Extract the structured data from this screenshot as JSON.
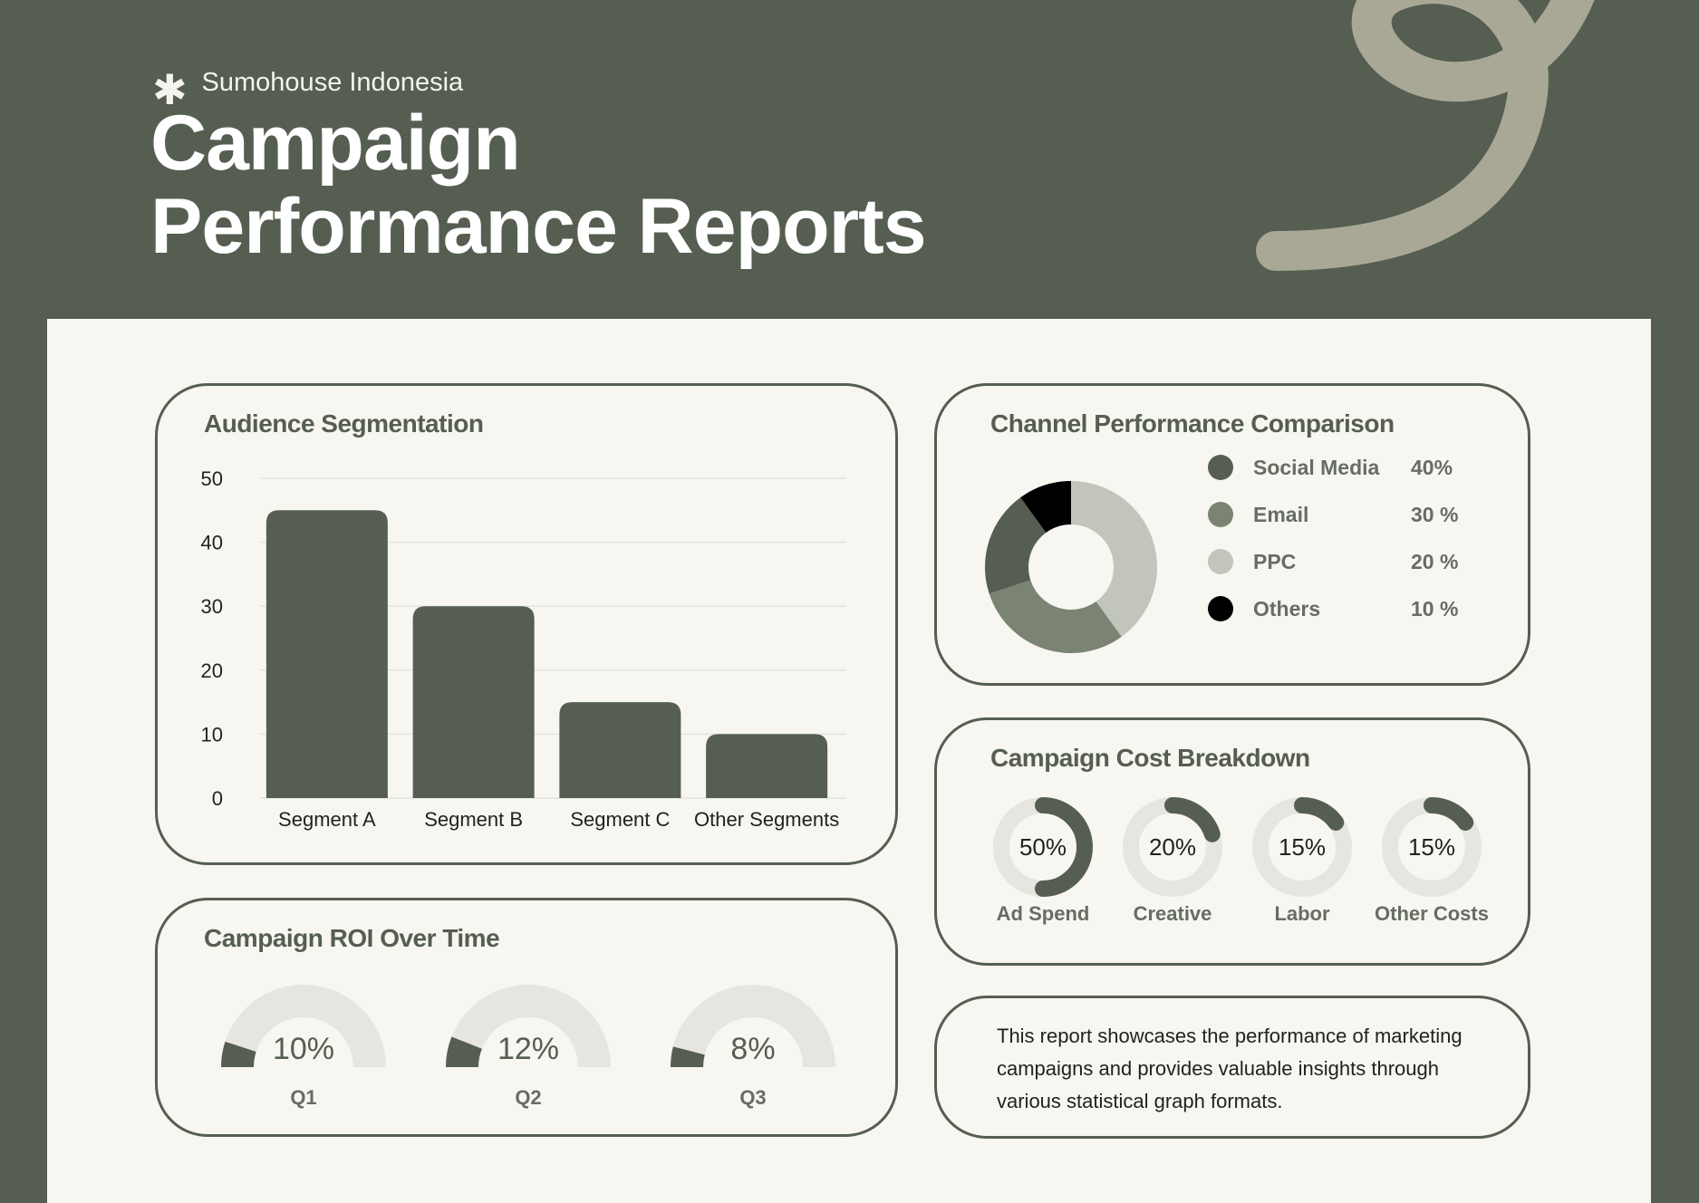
{
  "header": {
    "brand": "Sumohouse Indonesia",
    "title_line1": "Campaign",
    "title_line2": "Performance Reports"
  },
  "colors": {
    "dark_green": "#555e51",
    "mid_green": "#7b8473",
    "light_gray": "#c1c5bb",
    "track": "#e6e5e0",
    "black": "#000000",
    "paper": "#f7f6f1",
    "swirl": "#a9a896"
  },
  "icons": {
    "brand_mark": "asterisk-icon"
  },
  "chart_data": [
    {
      "type": "bar",
      "title": "Audience Segmentation",
      "categories": [
        "Segment A",
        "Segment B",
        "Segment C",
        "Other Segments"
      ],
      "values": [
        45,
        30,
        15,
        10
      ],
      "ylim": [
        0,
        50
      ],
      "yticks": [
        "0",
        "10",
        "20",
        "30",
        "40",
        "50"
      ],
      "grid": true
    },
    {
      "type": "pie",
      "title": "Channel Performance Comparison",
      "style": "donut",
      "legend_position": "right",
      "slices": [
        {
          "label": "Social Media",
          "value": 40,
          "display": "40%",
          "color": "#c1c5bb"
        },
        {
          "label": "Email",
          "value": 30,
          "display": "30 %",
          "color": "#7b8473"
        },
        {
          "label": "PPC",
          "value": 20,
          "display": "20 %",
          "color": "#555e51"
        },
        {
          "label": "Others",
          "value": 10,
          "display": "10 %",
          "color": "#000000"
        }
      ],
      "legend_colors": [
        "#555e51",
        "#7b8473",
        "#c1c5bb",
        "#000000"
      ]
    },
    {
      "type": "pie",
      "title": "Campaign Cost Breakdown",
      "style": "progress-rings",
      "items": [
        {
          "label": "Ad Spend",
          "value": 50,
          "display": "50%"
        },
        {
          "label": "Creative",
          "value": 20,
          "display": "20%"
        },
        {
          "label": "Labor",
          "value": 15,
          "display": "15%"
        },
        {
          "label": "Other Costs",
          "value": 15,
          "display": "15%"
        }
      ]
    },
    {
      "type": "pie",
      "title": "Campaign ROI Over Time",
      "style": "semicircle-gauges",
      "items": [
        {
          "label": "Q1",
          "value": 10,
          "display": "10%"
        },
        {
          "label": "Q2",
          "value": 12,
          "display": "12%"
        },
        {
          "label": "Q3",
          "value": 8,
          "display": "8%"
        }
      ]
    }
  ],
  "note": {
    "text": "This report showcases the performance of marketing campaigns and provides valuable insights through various statistical graph formats."
  }
}
